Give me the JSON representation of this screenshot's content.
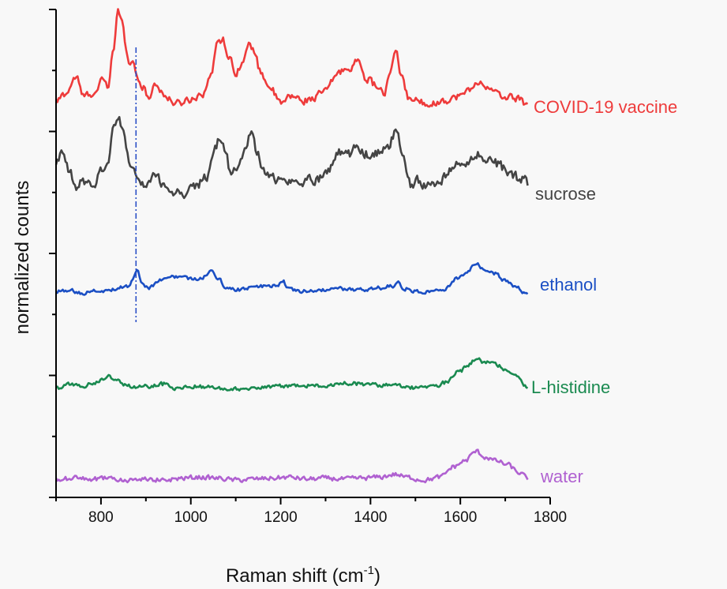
{
  "chart_data": {
    "type": "line",
    "title": "",
    "xlabel": "Raman shift (cm",
    "xlabel_sup": "-1",
    "xlabel_close": ")",
    "ylabel": "normalized counts",
    "xlim": [
      700,
      1800
    ],
    "x_ticks": [
      800,
      1000,
      1200,
      1400,
      1600,
      1800
    ],
    "grid": false,
    "y_scale": "stacked offset, no tick labels",
    "reference_line": {
      "x": 878,
      "style": "dash-dot",
      "color": "#2a4fc6"
    },
    "series": [
      {
        "name": "COVID-19 vaccine",
        "color": "#ee3b3b",
        "offset": 4.0,
        "anchors": [
          [
            700,
            0.04
          ],
          [
            720,
            0.12
          ],
          [
            745,
            0.3
          ],
          [
            760,
            0.1
          ],
          [
            790,
            0.14
          ],
          [
            805,
            0.28
          ],
          [
            815,
            0.18
          ],
          [
            828,
            0.6
          ],
          [
            838,
            0.98
          ],
          [
            848,
            0.85
          ],
          [
            858,
            0.55
          ],
          [
            866,
            0.42
          ],
          [
            872,
            0.48
          ],
          [
            880,
            0.3
          ],
          [
            895,
            0.18
          ],
          [
            905,
            0.08
          ],
          [
            920,
            0.22
          ],
          [
            935,
            0.15
          ],
          [
            950,
            0.06
          ],
          [
            970,
            0.02
          ],
          [
            995,
            0.06
          ],
          [
            1025,
            0.12
          ],
          [
            1045,
            0.3
          ],
          [
            1060,
            0.7
          ],
          [
            1072,
            0.68
          ],
          [
            1085,
            0.5
          ],
          [
            1100,
            0.35
          ],
          [
            1115,
            0.45
          ],
          [
            1130,
            0.62
          ],
          [
            1140,
            0.58
          ],
          [
            1155,
            0.35
          ],
          [
            1175,
            0.2
          ],
          [
            1200,
            0.02
          ],
          [
            1225,
            0.1
          ],
          [
            1250,
            0.05
          ],
          [
            1275,
            0.08
          ],
          [
            1300,
            0.16
          ],
          [
            1330,
            0.35
          ],
          [
            1350,
            0.38
          ],
          [
            1368,
            0.46
          ],
          [
            1378,
            0.42
          ],
          [
            1390,
            0.28
          ],
          [
            1410,
            0.22
          ],
          [
            1430,
            0.12
          ],
          [
            1445,
            0.35
          ],
          [
            1458,
            0.58
          ],
          [
            1468,
            0.3
          ],
          [
            1485,
            0.08
          ],
          [
            1510,
            0.04
          ],
          [
            1540,
            0.02
          ],
          [
            1570,
            0.06
          ],
          [
            1600,
            0.1
          ],
          [
            1630,
            0.2
          ],
          [
            1645,
            0.26
          ],
          [
            1665,
            0.16
          ],
          [
            1690,
            0.1
          ],
          [
            1720,
            0.08
          ],
          [
            1750,
            0.02
          ]
        ]
      },
      {
        "name": "sucrose",
        "color": "#444444",
        "offset": 3.0,
        "anchors": [
          [
            700,
            0.42
          ],
          [
            715,
            0.48
          ],
          [
            730,
            0.3
          ],
          [
            745,
            0.12
          ],
          [
            760,
            0.22
          ],
          [
            780,
            0.15
          ],
          [
            800,
            0.32
          ],
          [
            815,
            0.4
          ],
          [
            828,
            0.75
          ],
          [
            838,
            0.9
          ],
          [
            850,
            0.7
          ],
          [
            862,
            0.45
          ],
          [
            875,
            0.28
          ],
          [
            888,
            0.18
          ],
          [
            905,
            0.2
          ],
          [
            920,
            0.28
          ],
          [
            940,
            0.18
          ],
          [
            960,
            0.1
          ],
          [
            985,
            0.08
          ],
          [
            1010,
            0.16
          ],
          [
            1035,
            0.25
          ],
          [
            1050,
            0.5
          ],
          [
            1062,
            0.62
          ],
          [
            1075,
            0.55
          ],
          [
            1090,
            0.3
          ],
          [
            1105,
            0.35
          ],
          [
            1120,
            0.55
          ],
          [
            1132,
            0.72
          ],
          [
            1145,
            0.55
          ],
          [
            1160,
            0.32
          ],
          [
            1180,
            0.25
          ],
          [
            1200,
            0.22
          ],
          [
            1230,
            0.2
          ],
          [
            1260,
            0.22
          ],
          [
            1290,
            0.25
          ],
          [
            1310,
            0.35
          ],
          [
            1330,
            0.52
          ],
          [
            1350,
            0.5
          ],
          [
            1368,
            0.55
          ],
          [
            1385,
            0.5
          ],
          [
            1400,
            0.48
          ],
          [
            1420,
            0.5
          ],
          [
            1440,
            0.55
          ],
          [
            1458,
            0.78
          ],
          [
            1470,
            0.5
          ],
          [
            1488,
            0.18
          ],
          [
            1505,
            0.22
          ],
          [
            1530,
            0.15
          ],
          [
            1555,
            0.2
          ],
          [
            1580,
            0.35
          ],
          [
            1610,
            0.4
          ],
          [
            1635,
            0.5
          ],
          [
            1655,
            0.42
          ],
          [
            1680,
            0.4
          ],
          [
            1710,
            0.3
          ],
          [
            1735,
            0.22
          ],
          [
            1750,
            0.2
          ]
        ]
      },
      {
        "name": "ethanol",
        "color": "#1b4fc4",
        "offset": 2.0,
        "anchors": [
          [
            700,
            0.06
          ],
          [
            730,
            0.07
          ],
          [
            760,
            0.05
          ],
          [
            800,
            0.07
          ],
          [
            830,
            0.09
          ],
          [
            860,
            0.12
          ],
          [
            870,
            0.18
          ],
          [
            880,
            0.3
          ],
          [
            890,
            0.15
          ],
          [
            905,
            0.1
          ],
          [
            930,
            0.18
          ],
          [
            960,
            0.22
          ],
          [
            990,
            0.2
          ],
          [
            1010,
            0.2
          ],
          [
            1030,
            0.22
          ],
          [
            1045,
            0.27
          ],
          [
            1060,
            0.2
          ],
          [
            1080,
            0.1
          ],
          [
            1100,
            0.08
          ],
          [
            1130,
            0.1
          ],
          [
            1160,
            0.12
          ],
          [
            1190,
            0.12
          ],
          [
            1205,
            0.18
          ],
          [
            1215,
            0.09
          ],
          [
            1240,
            0.06
          ],
          [
            1270,
            0.07
          ],
          [
            1300,
            0.08
          ],
          [
            1340,
            0.09
          ],
          [
            1380,
            0.08
          ],
          [
            1420,
            0.1
          ],
          [
            1450,
            0.12
          ],
          [
            1460,
            0.18
          ],
          [
            1470,
            0.1
          ],
          [
            1500,
            0.07
          ],
          [
            1530,
            0.06
          ],
          [
            1565,
            0.08
          ],
          [
            1590,
            0.2
          ],
          [
            1615,
            0.25
          ],
          [
            1635,
            0.36
          ],
          [
            1650,
            0.3
          ],
          [
            1675,
            0.25
          ],
          [
            1700,
            0.18
          ],
          [
            1725,
            0.1
          ],
          [
            1750,
            0.03
          ]
        ]
      },
      {
        "name": "L-histidine",
        "color": "#1a8a50",
        "offset": 1.0,
        "anchors": [
          [
            700,
            0.06
          ],
          [
            730,
            0.1
          ],
          [
            760,
            0.08
          ],
          [
            790,
            0.12
          ],
          [
            815,
            0.18
          ],
          [
            830,
            0.16
          ],
          [
            855,
            0.1
          ],
          [
            880,
            0.06
          ],
          [
            910,
            0.08
          ],
          [
            940,
            0.1
          ],
          [
            970,
            0.06
          ],
          [
            1000,
            0.08
          ],
          [
            1030,
            0.07
          ],
          [
            1060,
            0.06
          ],
          [
            1100,
            0.05
          ],
          [
            1140,
            0.06
          ],
          [
            1180,
            0.08
          ],
          [
            1220,
            0.07
          ],
          [
            1260,
            0.09
          ],
          [
            1300,
            0.08
          ],
          [
            1340,
            0.11
          ],
          [
            1380,
            0.1
          ],
          [
            1420,
            0.09
          ],
          [
            1450,
            0.11
          ],
          [
            1480,
            0.07
          ],
          [
            1510,
            0.06
          ],
          [
            1545,
            0.08
          ],
          [
            1570,
            0.12
          ],
          [
            1595,
            0.22
          ],
          [
            1615,
            0.28
          ],
          [
            1635,
            0.36
          ],
          [
            1655,
            0.32
          ],
          [
            1685,
            0.3
          ],
          [
            1705,
            0.24
          ],
          [
            1730,
            0.18
          ],
          [
            1750,
            0.06
          ]
        ]
      },
      {
        "name": "water",
        "color": "#b061d1",
        "offset": 0.0,
        "anchors": [
          [
            700,
            0.1
          ],
          [
            740,
            0.12
          ],
          [
            780,
            0.11
          ],
          [
            820,
            0.12
          ],
          [
            860,
            0.1
          ],
          [
            900,
            0.11
          ],
          [
            940,
            0.1
          ],
          [
            980,
            0.12
          ],
          [
            1020,
            0.13
          ],
          [
            1060,
            0.12
          ],
          [
            1100,
            0.1
          ],
          [
            1140,
            0.11
          ],
          [
            1180,
            0.12
          ],
          [
            1220,
            0.13
          ],
          [
            1260,
            0.11
          ],
          [
            1300,
            0.12
          ],
          [
            1340,
            0.11
          ],
          [
            1380,
            0.12
          ],
          [
            1420,
            0.13
          ],
          [
            1455,
            0.16
          ],
          [
            1480,
            0.13
          ],
          [
            1520,
            0.1
          ],
          [
            1555,
            0.13
          ],
          [
            1585,
            0.24
          ],
          [
            1610,
            0.3
          ],
          [
            1635,
            0.4
          ],
          [
            1655,
            0.34
          ],
          [
            1680,
            0.3
          ],
          [
            1705,
            0.26
          ],
          [
            1730,
            0.18
          ],
          [
            1750,
            0.12
          ]
        ]
      }
    ]
  }
}
